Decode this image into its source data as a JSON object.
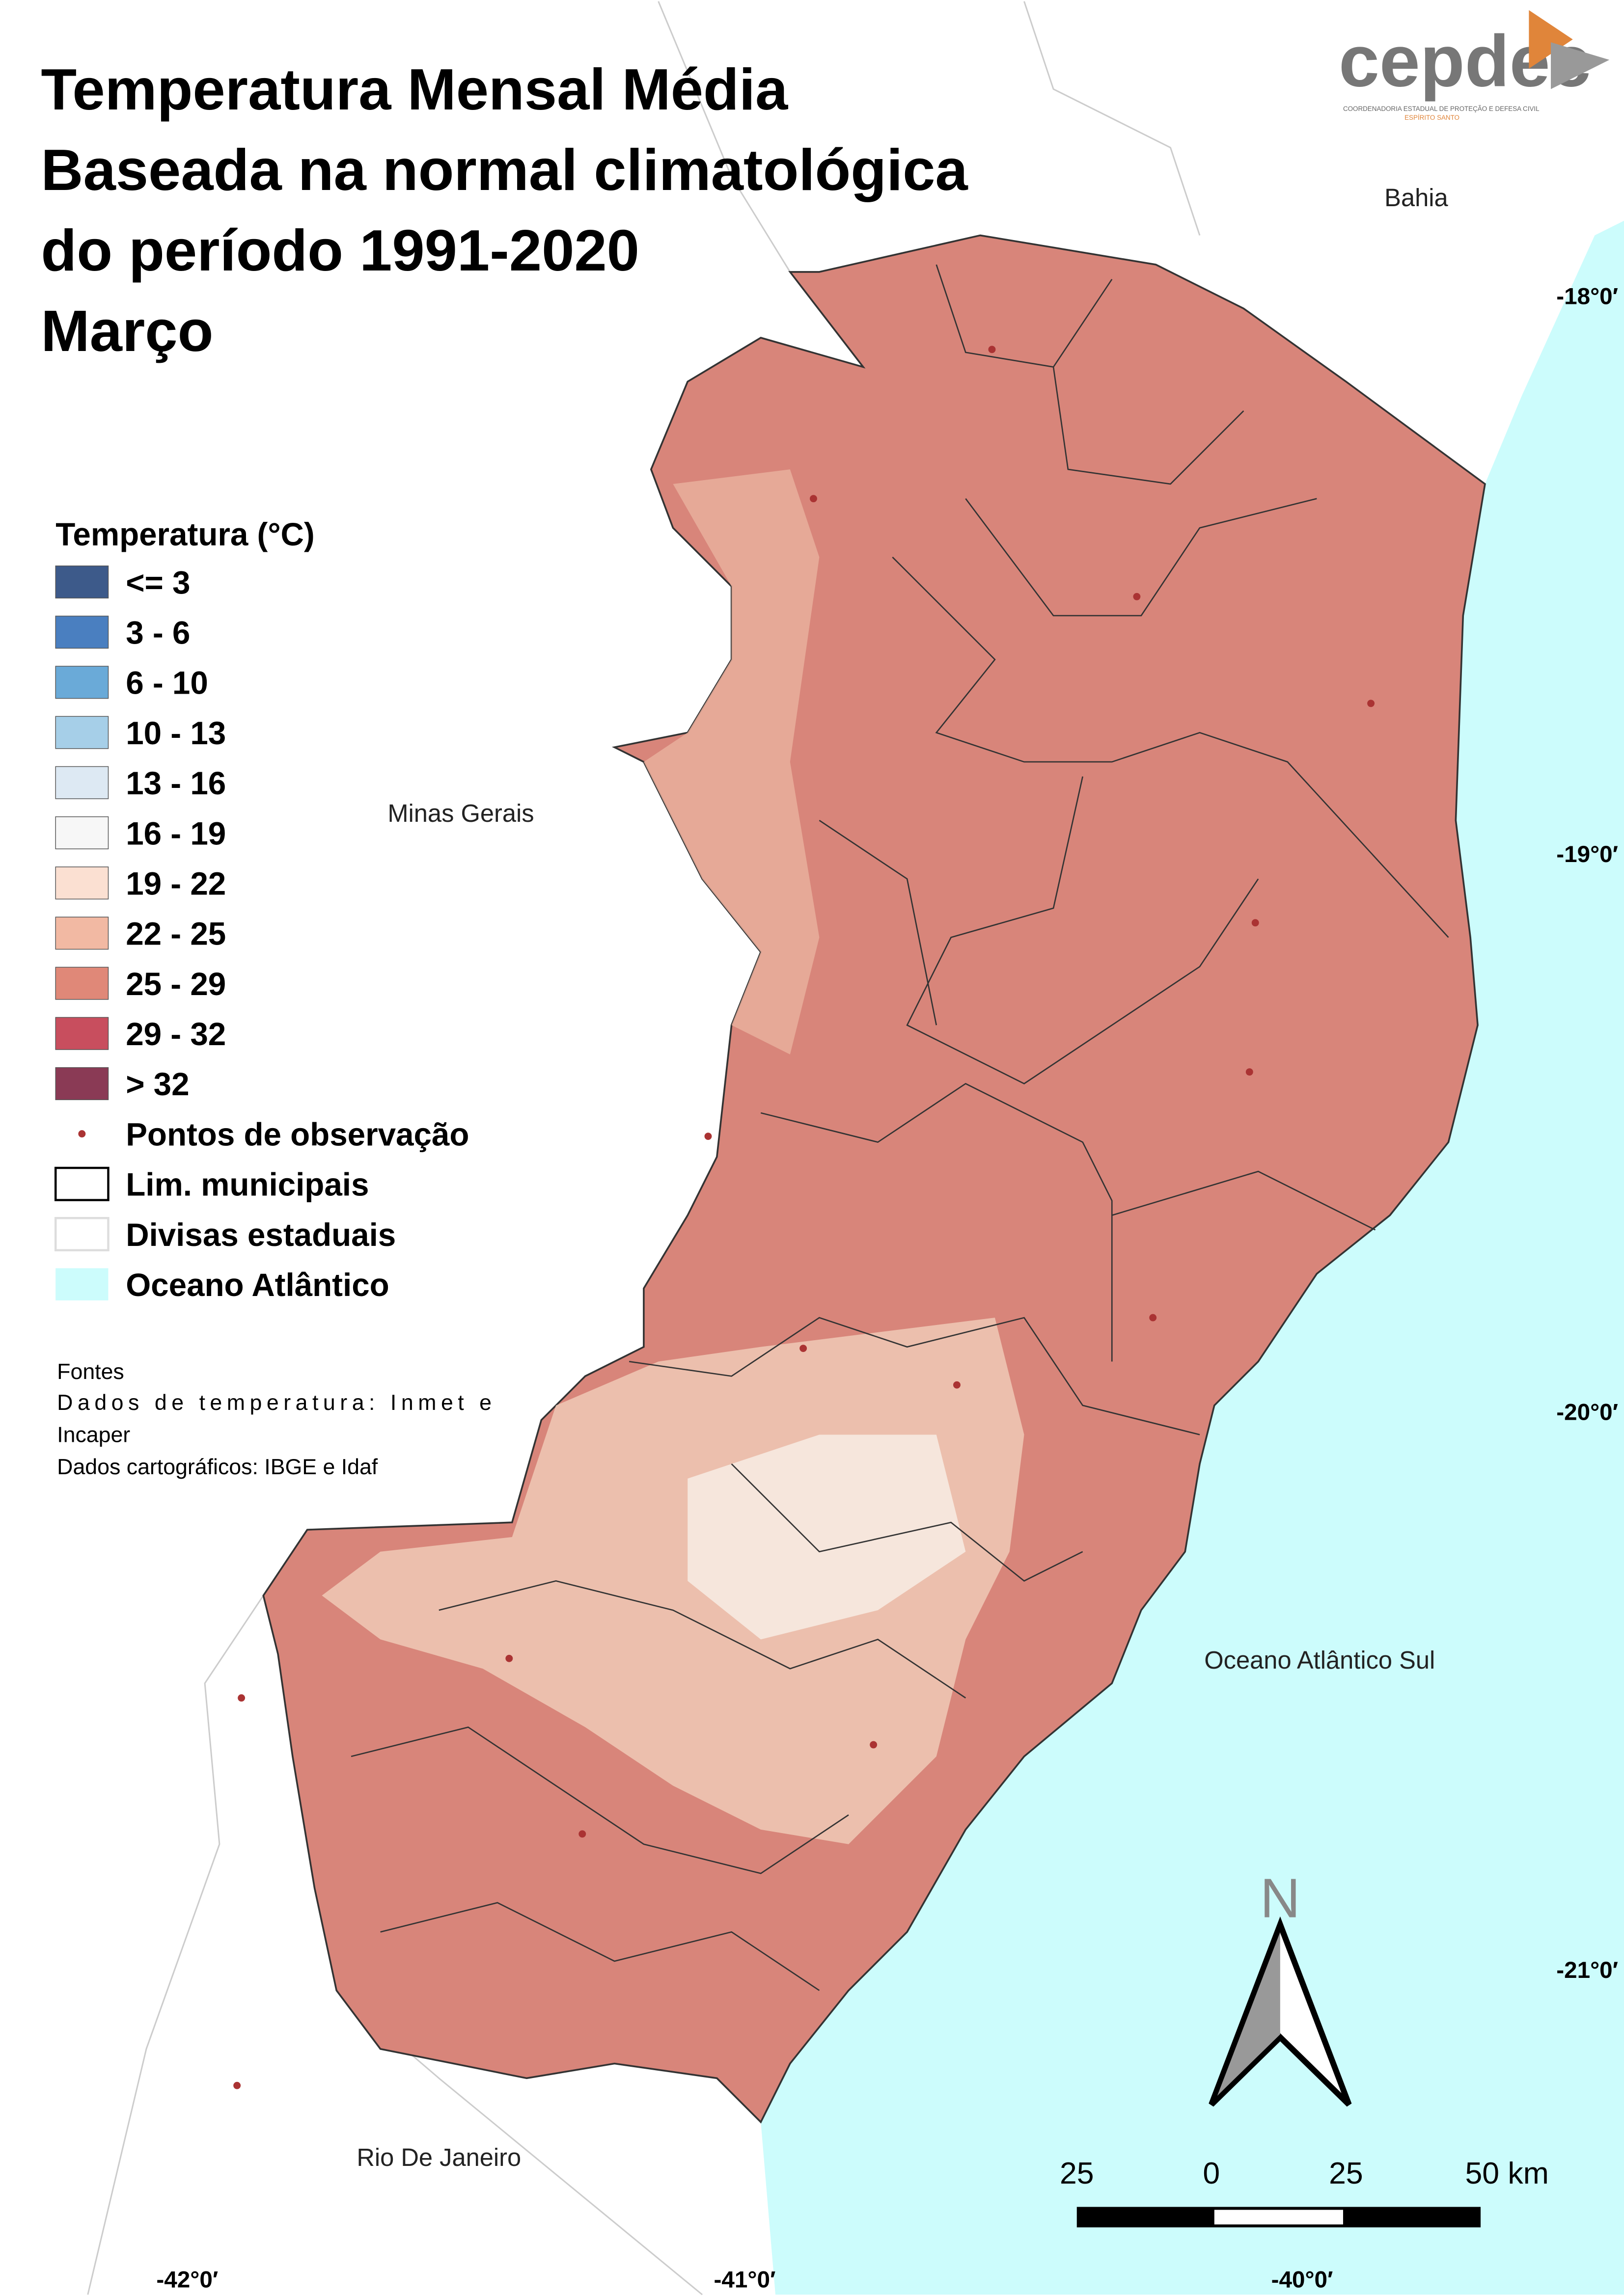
{
  "header": {
    "title_lines": [
      "Temperatura Mensal Média",
      "Baseada na normal climatológica",
      "do período 1991-2020",
      "Março"
    ]
  },
  "logo": {
    "name": "cepdec",
    "subtitle": "COORDENADORIA ESTADUAL DE PROTEÇÃO E DEFESA CIVIL",
    "region": "ESPÍRITO SANTO"
  },
  "legend": {
    "title": "Temperatura (°C)",
    "classes": [
      {
        "label": "<= 3",
        "color": "#3d5a8a"
      },
      {
        "label": "3 - 6",
        "color": "#4a7fc0"
      },
      {
        "label": "6 - 10",
        "color": "#6aaad8"
      },
      {
        "label": "10 - 13",
        "color": "#a6cfe8"
      },
      {
        "label": "13 - 16",
        "color": "#dde9f3"
      },
      {
        "label": "16 - 19",
        "color": "#f7f7f7"
      },
      {
        "label": "19 - 22",
        "color": "#fbe0d2"
      },
      {
        "label": "22 - 25",
        "color": "#f2b9a3"
      },
      {
        "label": "25 - 29",
        "color": "#e08878"
      },
      {
        "label": "29 - 32",
        "color": "#c84e5e"
      },
      {
        "label": "> 32",
        "color": "#8a3a55"
      }
    ],
    "symbols": [
      "Pontos de observação",
      "Lim. municipais",
      "Divisas estaduais",
      "Oceano Atlântico"
    ]
  },
  "sources": {
    "title": "Fontes",
    "lines": [
      "Dados de temperatura: Inmet e",
      "Incaper",
      "Dados cartográficos: IBGE e Idaf"
    ]
  },
  "places": [
    "Bahia",
    "Minas Gerais",
    "Oceano Atlântico Sul",
    "Rio De Janeiro"
  ],
  "latitudes": [
    "-18°0′",
    "-19°0′",
    "-20°0′",
    "-21°0′"
  ],
  "longitudes": [
    "-42°0′",
    "-41°0′",
    "-40°0′"
  ],
  "scale_bar": {
    "labels": [
      "25",
      "0",
      "25",
      "50 km"
    ]
  },
  "north": "N"
}
